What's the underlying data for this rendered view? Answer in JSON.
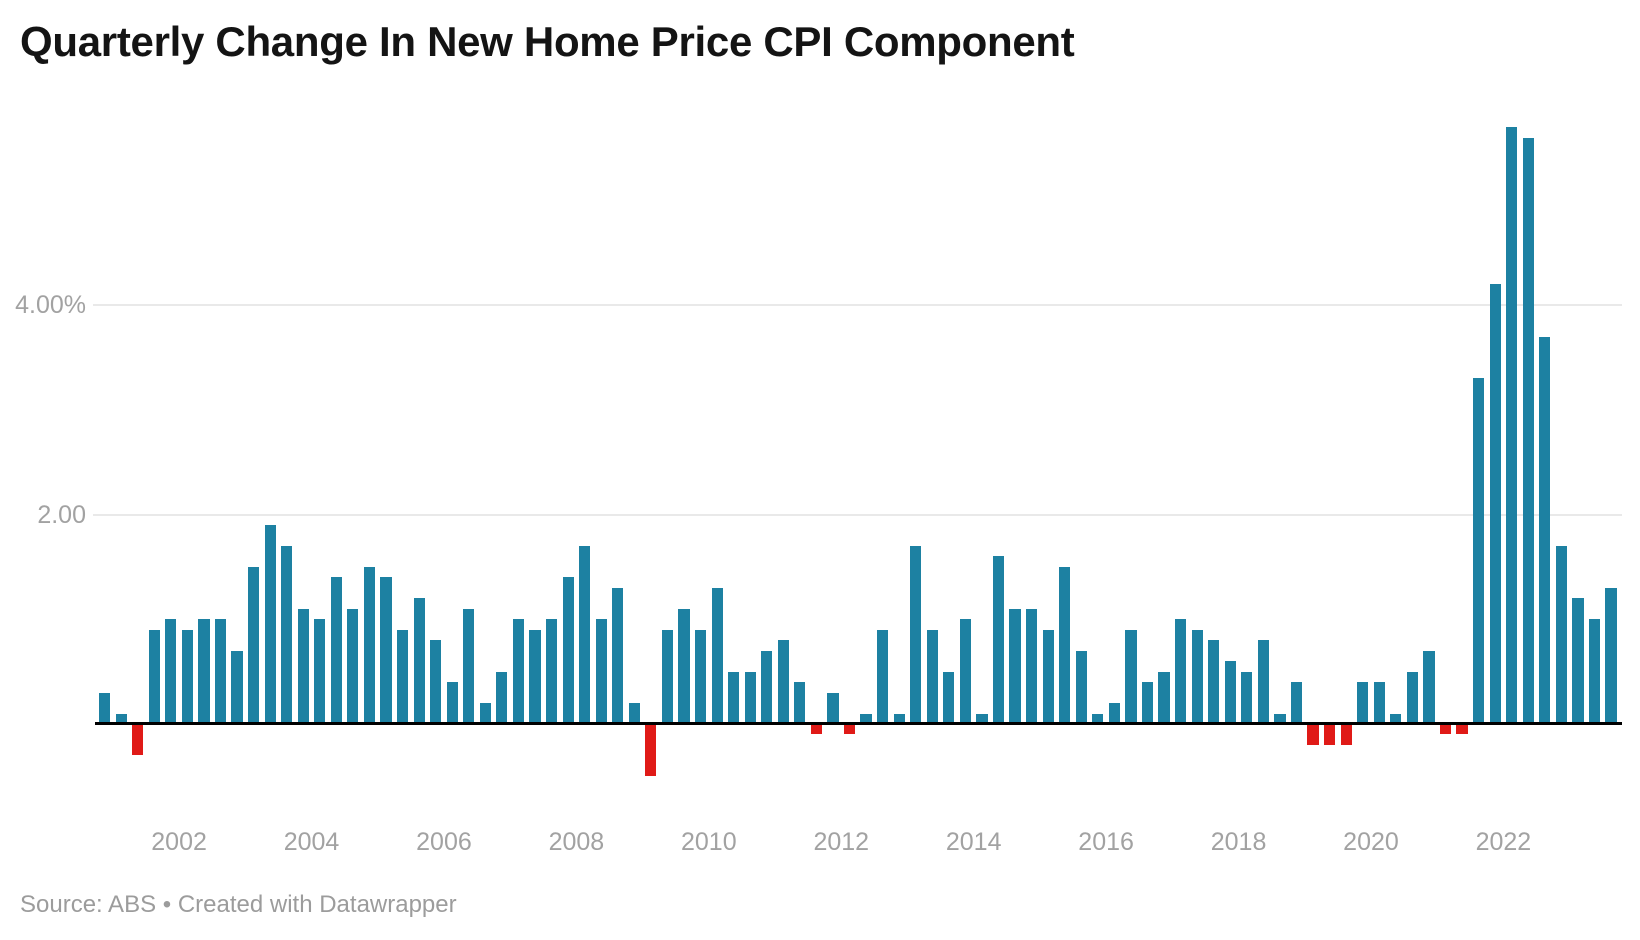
{
  "header": {
    "title": "Quarterly Change In New Home Price CPI Component"
  },
  "footer": {
    "text": "Source: ABS • Created with Datawrapper"
  },
  "colors": {
    "positive_bar": "#1d81a2",
    "negative_bar": "#e01a17",
    "gridline": "#e9e9e9",
    "baseline": "#000000",
    "axis_text": "#a2a2a2",
    "title_text": "#141414",
    "footer_text": "#9c9c9c",
    "background": "#ffffff"
  },
  "chart_data": {
    "type": "bar",
    "title": "Quarterly Change In New Home Price CPI Component",
    "source": "ABS",
    "unit": "%",
    "frequency": "quarterly",
    "grid": "horizontal",
    "legend_position": "none",
    "ylim": [
      -0.8,
      6.0
    ],
    "y_ticks": [
      {
        "label": "4.00%",
        "value": 4.0
      },
      {
        "label": "2.00",
        "value": 2.0
      }
    ],
    "x_ticks": [
      {
        "label": "2002",
        "index": 5
      },
      {
        "label": "2004",
        "index": 13
      },
      {
        "label": "2006",
        "index": 21
      },
      {
        "label": "2008",
        "index": 29
      },
      {
        "label": "2010",
        "index": 37
      },
      {
        "label": "2012",
        "index": 45
      },
      {
        "label": "2014",
        "index": 53
      },
      {
        "label": "2016",
        "index": 61
      },
      {
        "label": "2018",
        "index": 69
      },
      {
        "label": "2020",
        "index": 77
      },
      {
        "label": "2022",
        "index": 85
      }
    ],
    "categories": [
      "2000 Q4",
      "2001 Q1",
      "2001 Q2",
      "2001 Q3",
      "2001 Q4",
      "2002 Q1",
      "2002 Q2",
      "2002 Q3",
      "2002 Q4",
      "2003 Q1",
      "2003 Q2",
      "2003 Q3",
      "2003 Q4",
      "2004 Q1",
      "2004 Q2",
      "2004 Q3",
      "2004 Q4",
      "2005 Q1",
      "2005 Q2",
      "2005 Q3",
      "2005 Q4",
      "2006 Q1",
      "2006 Q2",
      "2006 Q3",
      "2006 Q4",
      "2007 Q1",
      "2007 Q2",
      "2007 Q3",
      "2007 Q4",
      "2008 Q1",
      "2008 Q2",
      "2008 Q3",
      "2008 Q4",
      "2009 Q1",
      "2009 Q2",
      "2009 Q3",
      "2009 Q4",
      "2010 Q1",
      "2010 Q2",
      "2010 Q3",
      "2010 Q4",
      "2011 Q1",
      "2011 Q2",
      "2011 Q3",
      "2011 Q4",
      "2012 Q1",
      "2012 Q2",
      "2012 Q3",
      "2012 Q4",
      "2013 Q1",
      "2013 Q2",
      "2013 Q3",
      "2013 Q4",
      "2014 Q1",
      "2014 Q2",
      "2014 Q3",
      "2014 Q4",
      "2015 Q1",
      "2015 Q2",
      "2015 Q3",
      "2015 Q4",
      "2016 Q1",
      "2016 Q2",
      "2016 Q3",
      "2016 Q4",
      "2017 Q1",
      "2017 Q2",
      "2017 Q3",
      "2017 Q4",
      "2018 Q1",
      "2018 Q2",
      "2018 Q3",
      "2018 Q4",
      "2019 Q1",
      "2019 Q2",
      "2019 Q3",
      "2019 Q4",
      "2020 Q1",
      "2020 Q2",
      "2020 Q3",
      "2020 Q4",
      "2021 Q1",
      "2021 Q2",
      "2021 Q3",
      "2021 Q4",
      "2022 Q1",
      "2022 Q2",
      "2022 Q3",
      "2022 Q4",
      "2023 Q1",
      "2023 Q2",
      "2023 Q3"
    ],
    "values": [
      0.3,
      0.1,
      -0.3,
      0.9,
      1.0,
      0.9,
      1.0,
      1.0,
      0.7,
      1.5,
      1.9,
      1.7,
      1.1,
      1.0,
      1.4,
      1.1,
      1.5,
      1.4,
      0.9,
      1.2,
      0.8,
      0.4,
      1.1,
      0.2,
      0.5,
      1.0,
      0.9,
      1.0,
      1.4,
      1.7,
      1.0,
      1.3,
      0.2,
      -0.5,
      0.9,
      1.1,
      0.9,
      1.3,
      0.5,
      0.5,
      0.7,
      0.8,
      0.4,
      -0.1,
      0.3,
      -0.1,
      0.1,
      0.9,
      0.1,
      1.7,
      0.9,
      0.5,
      1.0,
      0.1,
      1.6,
      1.1,
      1.1,
      0.9,
      1.5,
      0.7,
      0.1,
      0.2,
      0.9,
      0.4,
      0.5,
      1.0,
      0.9,
      0.8,
      0.6,
      0.5,
      0.8,
      0.1,
      0.4,
      -0.2,
      -0.2,
      -0.2,
      0.4,
      0.4,
      0.1,
      0.5,
      0.7,
      -0.1,
      -0.1,
      3.3,
      4.2,
      5.7,
      5.6,
      3.7,
      1.7,
      1.2,
      1.0,
      1.3
    ]
  }
}
